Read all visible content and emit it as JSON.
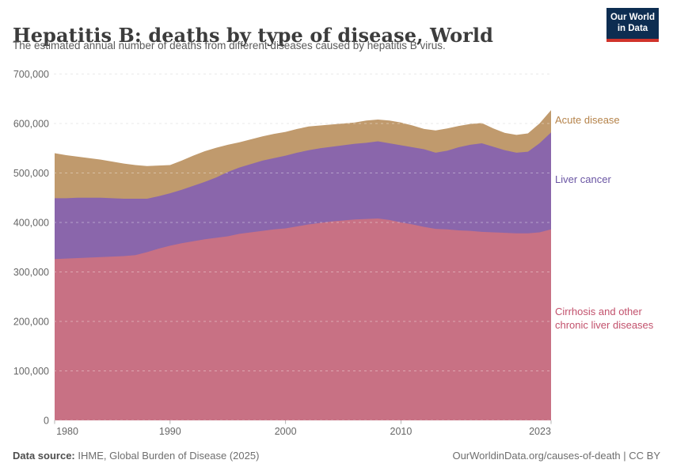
{
  "header": {
    "title": "Hepatitis B: deaths by type of disease, World",
    "subtitle": "The estimated annual number of deaths from different diseases caused by hepatitis B virus."
  },
  "logo": {
    "line1": "Our World",
    "line2": "in Data",
    "bg_color": "#0d2d51",
    "accent_color": "#d0332b"
  },
  "chart_data": {
    "type": "area",
    "stacked": true,
    "title": "Hepatitis B: deaths by type of disease, World",
    "xlabel": "",
    "ylabel": "",
    "grid": "dashed",
    "legend_position": "right",
    "ylim": [
      0,
      700000
    ],
    "x": [
      1980,
      1981,
      1982,
      1983,
      1984,
      1985,
      1986,
      1987,
      1988,
      1989,
      1990,
      1991,
      1992,
      1993,
      1994,
      1995,
      1996,
      1997,
      1998,
      1999,
      2000,
      2001,
      2002,
      2003,
      2004,
      2005,
      2006,
      2007,
      2008,
      2009,
      2010,
      2011,
      2012,
      2013,
      2014,
      2015,
      2016,
      2017,
      2018,
      2019,
      2020,
      2021,
      2022,
      2023
    ],
    "series": [
      {
        "name": "Cirrhosis and other chronic liver diseases",
        "color": "#c87184",
        "label_color": "#c2516c",
        "values": [
          326000,
          327000,
          328000,
          329000,
          330000,
          331000,
          332000,
          334000,
          340000,
          347000,
          353000,
          358000,
          362000,
          366000,
          369000,
          372000,
          377000,
          380000,
          383000,
          386000,
          388000,
          392000,
          396000,
          399000,
          402000,
          404000,
          406000,
          407000,
          408000,
          405000,
          400000,
          396000,
          391000,
          387000,
          386000,
          384000,
          383000,
          381000,
          380000,
          379000,
          378000,
          378000,
          380000,
          386000
        ]
      },
      {
        "name": "Liver cancer",
        "color": "#8a66ab",
        "label_color": "#6a55a3",
        "values": [
          123000,
          122000,
          122000,
          121000,
          120000,
          118000,
          116000,
          114000,
          108000,
          106000,
          106000,
          108000,
          112000,
          116000,
          122000,
          130000,
          134000,
          138000,
          142000,
          144000,
          147000,
          149000,
          150000,
          151000,
          151000,
          152000,
          153000,
          154000,
          156000,
          155000,
          156000,
          156000,
          157000,
          154000,
          159000,
          168000,
          174000,
          179000,
          173000,
          167000,
          163000,
          165000,
          180000,
          196000
        ]
      },
      {
        "name": "Acute disease",
        "color": "#c09a6d",
        "label_color": "#b5834a",
        "values": [
          91000,
          87000,
          83000,
          80000,
          77000,
          74000,
          71000,
          68000,
          66000,
          62000,
          57000,
          59000,
          61000,
          62000,
          60000,
          55000,
          51000,
          50000,
          49000,
          49000,
          48000,
          48000,
          48000,
          46000,
          45000,
          44000,
          43000,
          45000,
          44000,
          46000,
          46000,
          44000,
          41000,
          45000,
          45000,
          43000,
          42000,
          41000,
          37000,
          35000,
          36000,
          37000,
          40000,
          45000
        ]
      }
    ],
    "y_ticks": [
      0,
      100000,
      200000,
      300000,
      400000,
      500000,
      600000,
      700000
    ],
    "y_tick_labels": [
      "0",
      "100,000",
      "200,000",
      "300,000",
      "400,000",
      "500,000",
      "600,000",
      "700,000"
    ],
    "x_tick_years": [
      1980,
      1990,
      2000,
      2010,
      2023
    ],
    "x_tick_labels": [
      "1980",
      "1990",
      "2000",
      "2010",
      "2023"
    ]
  },
  "footer": {
    "source_label": "Data source:",
    "source_value": " IHME, Global Burden of Disease (2025)",
    "link": "OurWorldinData.org/causes-of-death | CC BY"
  }
}
